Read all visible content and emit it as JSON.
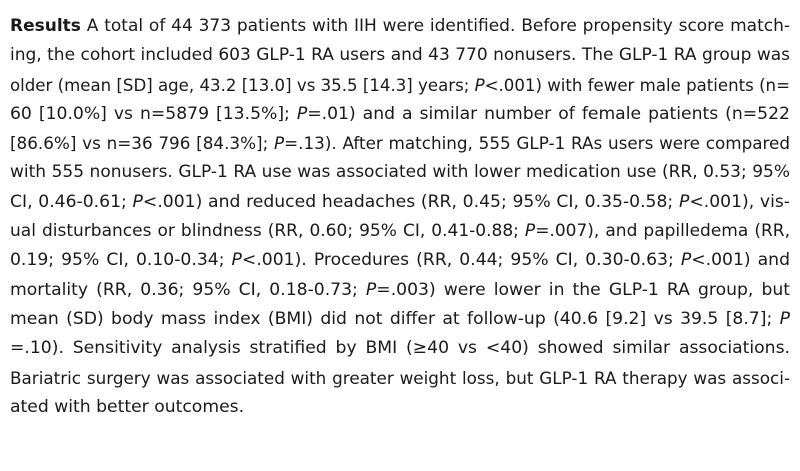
{
  "section": {
    "heading": "Results",
    "lines": [
      {
        "parts": [
          " A total of 44 373 patients with IIH were identified. Before propensity score match-"
        ]
      },
      {
        "parts": [
          "ing, the cohort included 603 GLP-1 RA users and 43 770 nonusers. The GLP-1 RA group was"
        ]
      },
      {
        "parts": [
          "older (mean [SD] age, 43.2 [13.0] vs 35.5 [14.3] years; ",
          "P",
          "<.001) with fewer male patients (n="
        ]
      },
      {
        "parts": [
          "60 [10.0%] vs n=5879 [13.5%]; ",
          "P",
          "=.01) and a similar number of female patients (n=522"
        ]
      },
      {
        "parts": [
          "[86.6%] vs n=36 796 [84.3%]; ",
          "P",
          "=.13). After matching, 555 GLP-1 RAs users were compared"
        ]
      },
      {
        "parts": [
          "with 555 nonusers. GLP-1 RA use was associated with lower medication use (RR, 0.53; 95%"
        ]
      },
      {
        "parts": [
          "CI, 0.46-0.61; ",
          "P",
          "<.001) and reduced headaches (RR, 0.45; 95% CI, 0.35-0.58; ",
          "P",
          "<.001), vis-"
        ]
      },
      {
        "parts": [
          "ual disturbances or blindness (RR, 0.60; 95% CI, 0.41-0.88; ",
          "P",
          "=.007), and papilledema (RR,"
        ]
      },
      {
        "parts": [
          "0.19; 95% CI, 0.10-0.34; ",
          "P",
          "<.001). Procedures (RR, 0.44; 95% CI, 0.30-0.63; ",
          "P",
          "<.001) and"
        ]
      },
      {
        "parts": [
          "mortality (RR, 0.36; 95% CI, 0.18-0.73; ",
          "P",
          "=.003) were lower in the GLP-1 RA group, but"
        ]
      },
      {
        "parts": [
          "mean (SD) body mass index (BMI) did not differ at follow-up (40.6 [9.2] vs 39.5 [8.7]; ",
          "P"
        ]
      },
      {
        "parts": [
          "=.10). Sensitivity analysis stratified by BMI (≥40 vs <40) showed similar associations."
        ]
      },
      {
        "parts": [
          "Bariatric surgery was associated with greater weight loss, but GLP-1 RA therapy was associ-"
        ]
      },
      {
        "parts": [
          "ated with better outcomes."
        ]
      }
    ]
  }
}
